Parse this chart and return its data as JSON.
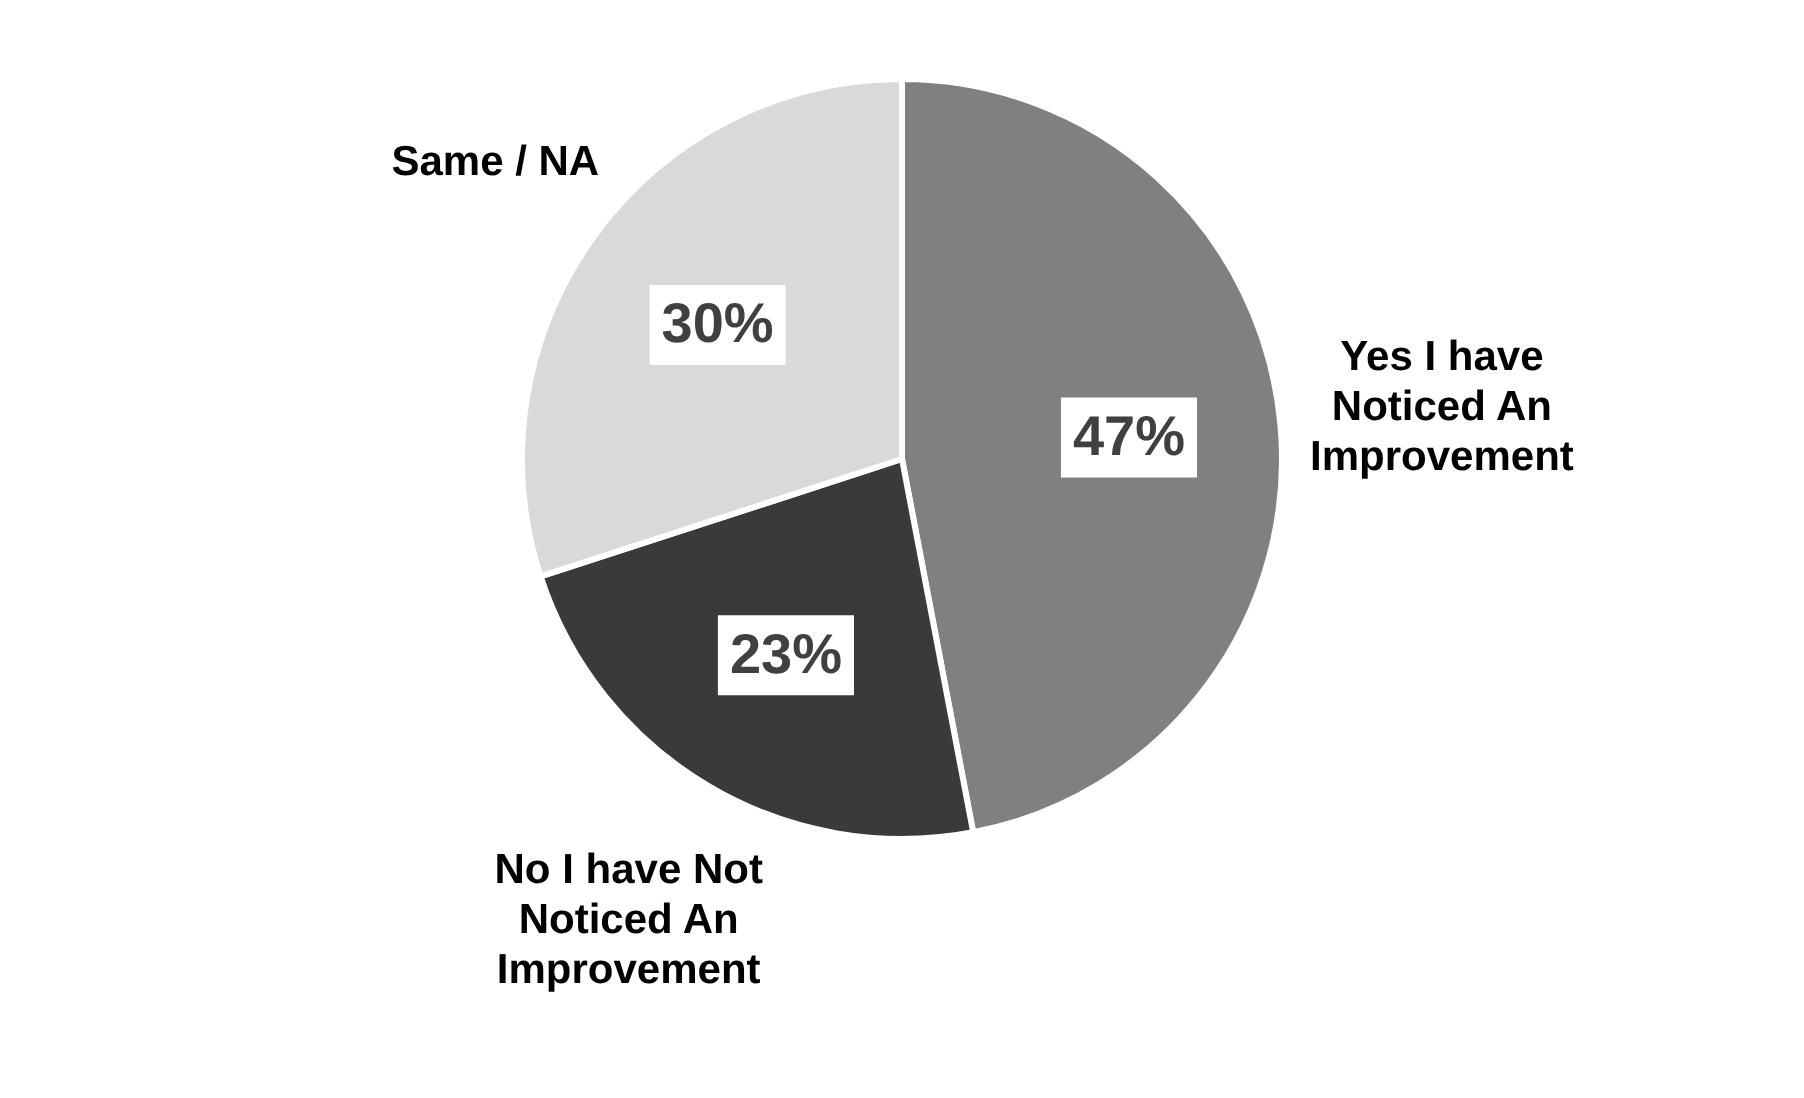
{
  "chart_data": {
    "type": "pie",
    "categories": [
      "Yes I have Noticed An Improvement",
      "No I have Not Noticed An Improvement",
      "Same / NA"
    ],
    "values": [
      47,
      23,
      30
    ],
    "colors": [
      "#808080",
      "#3a3a3a",
      "#d9d9d9"
    ],
    "value_labels": [
      "47%",
      "23%",
      "30%"
    ],
    "legend": false
  }
}
